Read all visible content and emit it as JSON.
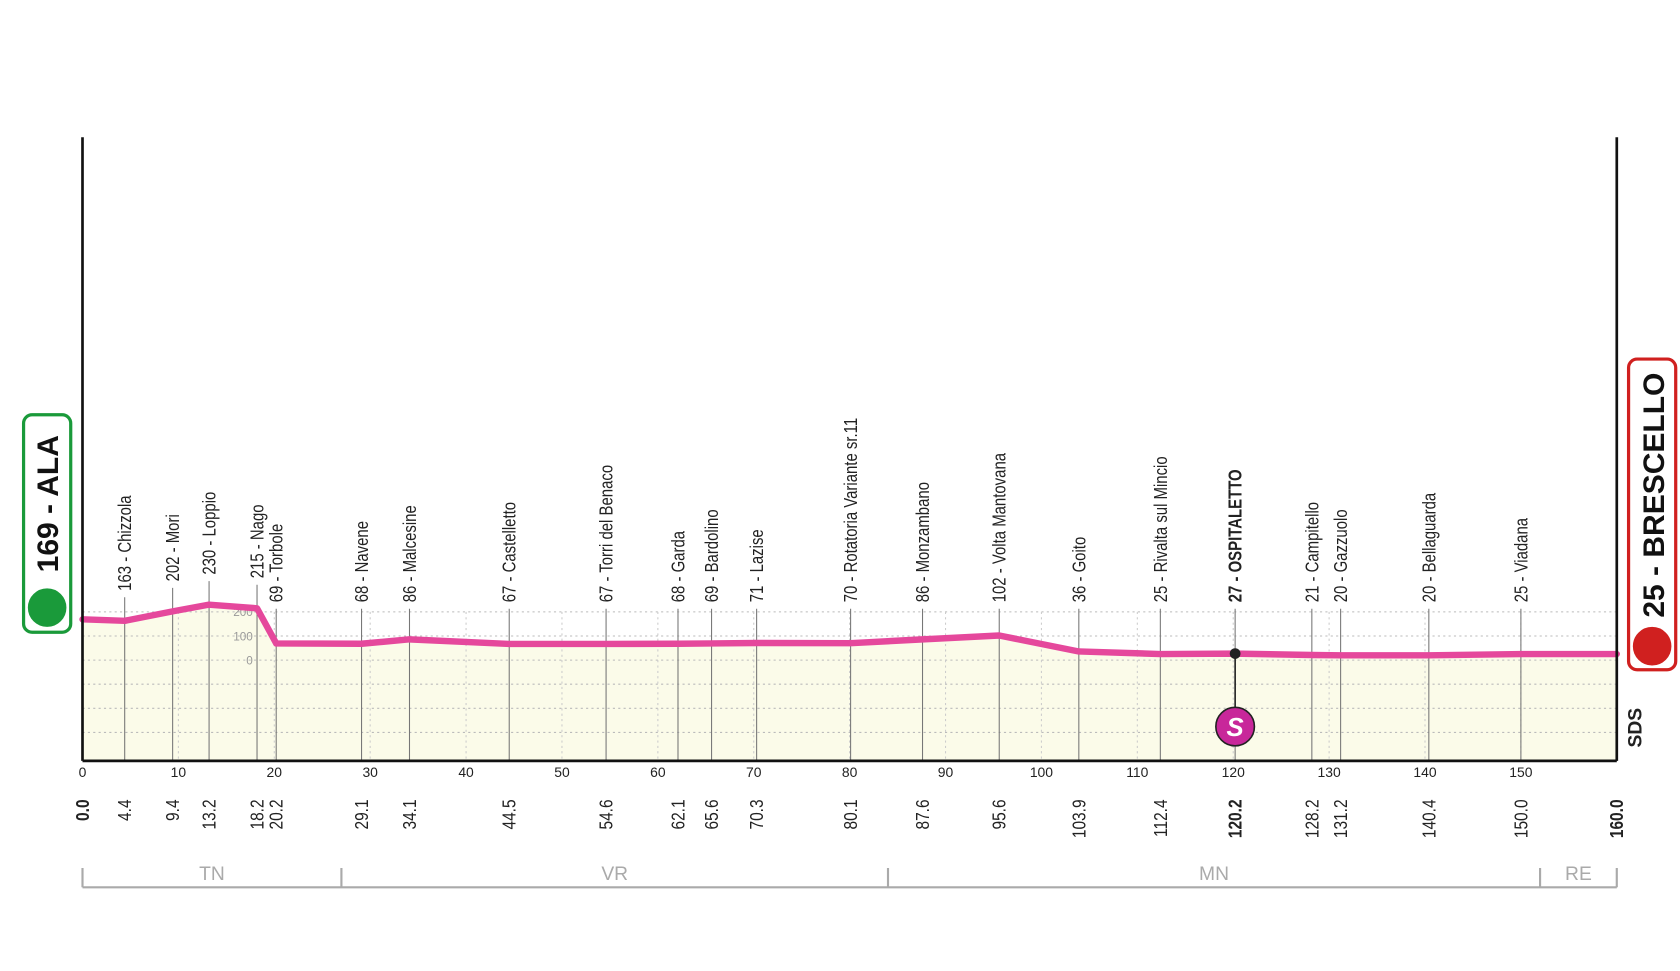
{
  "chart_data": {
    "type": "line",
    "start": "169 - ALA",
    "finish": "25 - BRESCELLO",
    "sponsor": "SDS",
    "sprint_symbol": "S",
    "color": "#e5489c",
    "x": [
      0.0,
      4.4,
      9.4,
      13.2,
      18.2,
      20.2,
      29.1,
      34.1,
      44.5,
      54.6,
      62.1,
      65.6,
      70.3,
      80.1,
      87.6,
      95.6,
      103.9,
      112.4,
      120.2,
      128.2,
      131.2,
      140.4,
      150.0,
      160.0
    ],
    "x_labels": [
      "0.0",
      "4.4",
      "9.4",
      "13.2",
      "18.2",
      "20.2",
      "29.1",
      "34.1",
      "44.5",
      "54.6",
      "62.1",
      "65.6",
      "70.3",
      "80.1",
      "87.6",
      "95.6",
      "103.9",
      "112.4",
      "120.2",
      "128.2",
      "131.2",
      "140.4",
      "150.0",
      "160.0"
    ],
    "values": [
      169,
      163,
      202,
      230,
      215,
      69,
      68,
      86,
      67,
      67,
      68,
      69,
      71,
      70,
      86,
      102,
      36,
      25,
      27,
      21,
      20,
      20,
      25,
      25
    ],
    "labels": [
      "169 - ALA",
      "163 - Chizzola",
      "202 - Mori",
      "230 - Loppio",
      "215 - Nago",
      "69 - Torbole",
      "68 - Navene",
      "86 - Malcesine",
      "67 - Castelletto",
      "67 - Torri del Benaco",
      "68 - Garda",
      "69 - Bardolino",
      "71 - Lazise",
      "70 - Rotatoria Variante sr.11",
      "86 - Monzambano",
      "102 - Volta Mantovana",
      "36 - Goito",
      "25 - Rivalta sul Mincio",
      "27 - OSPITALETTO",
      "21 - Campitello",
      "20 - Gazzuolo",
      "20 - Bellaguarda",
      "25 - Viadana",
      "25 - BRESCELLO"
    ],
    "xlim": [
      0,
      160
    ],
    "xticks": [
      0,
      10,
      20,
      30,
      40,
      50,
      60,
      70,
      80,
      90,
      100,
      110,
      120,
      130,
      140,
      150
    ],
    "ylim": [
      -418,
      2169
    ],
    "yticks": [
      0,
      100,
      200
    ],
    "regions": [
      "TN",
      "VR",
      "MN",
      "RE"
    ],
    "region_bounds": [
      0,
      27,
      84,
      152,
      160
    ]
  }
}
